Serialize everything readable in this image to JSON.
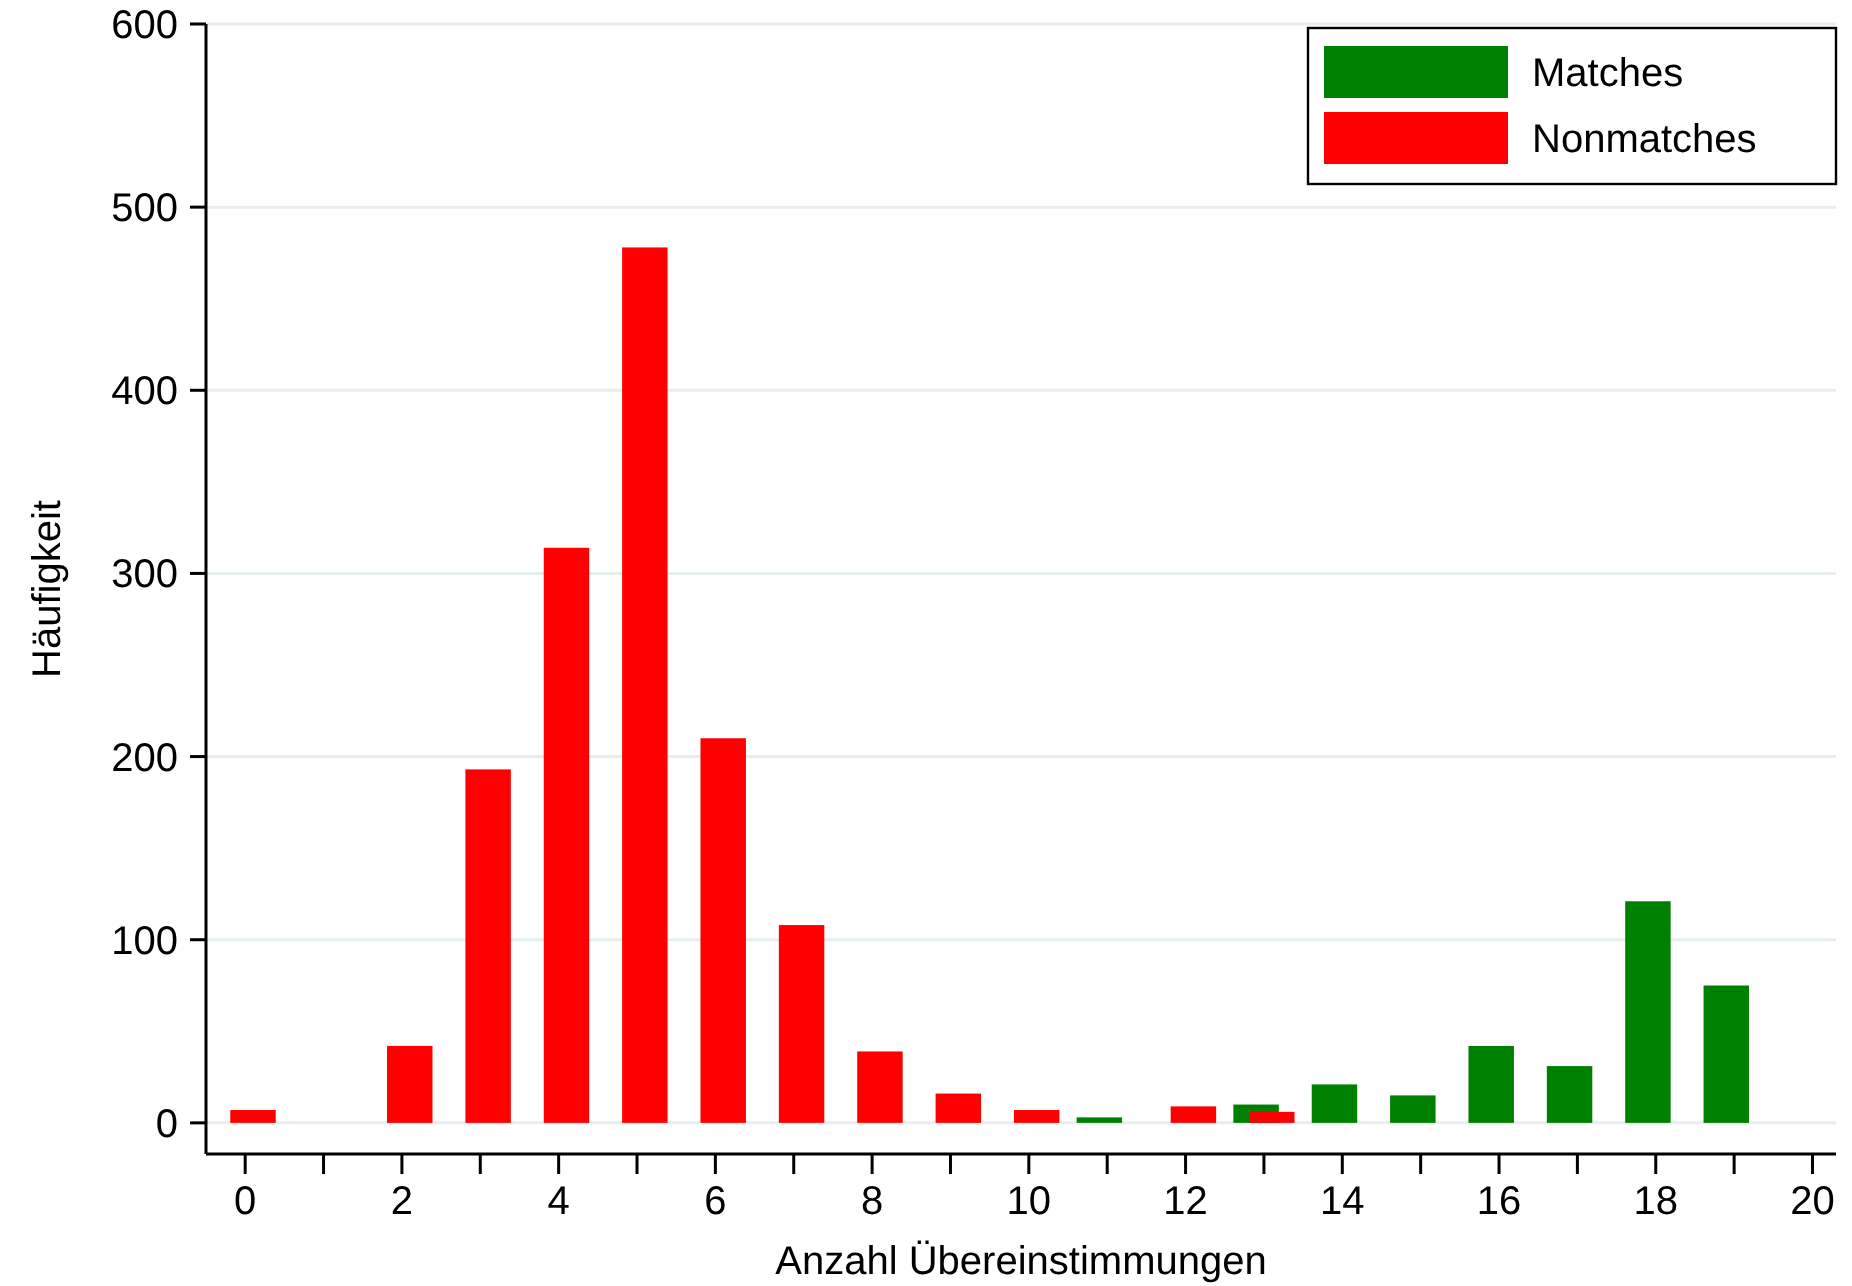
{
  "chart_data": {
    "type": "bar",
    "xlabel": "Anzahl Übereinstimmungen",
    "ylabel": "Häufigkeit",
    "series": [
      {
        "name": "Matches",
        "color": "#008000",
        "x": [
          11,
          13,
          14,
          15,
          16,
          17,
          18,
          19
        ],
        "values": [
          3,
          10,
          21,
          15,
          42,
          31,
          121,
          75
        ]
      },
      {
        "name": "Nonmatches",
        "color": "#ff0000",
        "x": [
          0,
          2,
          3,
          4,
          5,
          6,
          7,
          8,
          9,
          10,
          12,
          13
        ],
        "values": [
          7,
          42,
          193,
          314,
          478,
          210,
          108,
          39,
          16,
          7,
          9,
          6
        ]
      }
    ],
    "xlim": [
      -0.5,
      20.3
    ],
    "ylim": [
      -17,
      600
    ],
    "xticks": [
      0,
      {
        "value": 1,
        "label": null
      },
      2,
      {
        "value": 3,
        "label": null
      },
      4,
      {
        "value": 5,
        "label": null
      },
      6,
      {
        "value": 7,
        "label": null
      },
      8,
      {
        "value": 9,
        "label": null
      },
      10,
      {
        "value": 11,
        "label": null
      },
      12,
      {
        "value": 13,
        "label": null
      },
      14,
      {
        "value": 15,
        "label": null
      },
      16,
      {
        "value": 17,
        "label": null
      },
      18,
      {
        "value": 19,
        "label": null
      },
      20
    ],
    "yticks": [
      0,
      100,
      200,
      300,
      400,
      500,
      600
    ],
    "grid": "y",
    "legend": "top right"
  }
}
